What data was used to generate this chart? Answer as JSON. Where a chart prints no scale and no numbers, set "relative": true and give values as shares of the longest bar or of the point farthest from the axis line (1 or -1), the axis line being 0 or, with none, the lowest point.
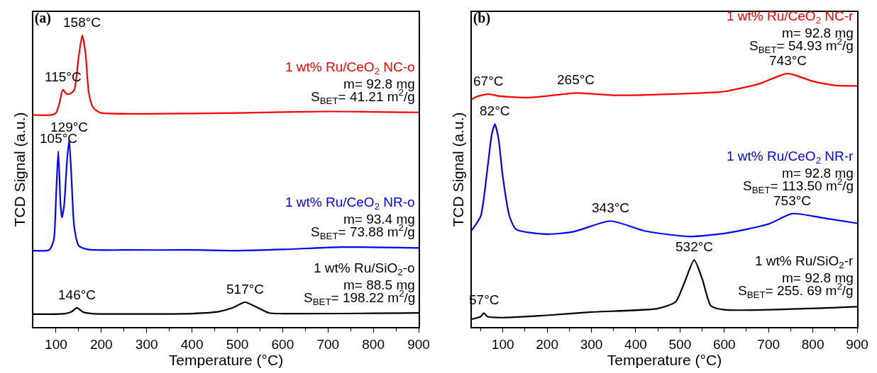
{
  "chart_data": [
    {
      "type": "line",
      "title": "(a)",
      "xlabel": "Temperature (°C)",
      "ylabel": "TCD Signal (a.u.)",
      "relative": true,
      "xlim": [
        50,
        900
      ],
      "xticks": [
        100,
        200,
        300,
        400,
        500,
        600,
        700,
        800,
        900,
        {
          "value": 150,
          "label": null
        },
        {
          "value": 250,
          "label": null
        },
        {
          "value": 350,
          "label": null
        },
        {
          "value": 450,
          "label": null
        },
        {
          "value": 550,
          "label": null
        },
        {
          "value": 650,
          "label": null
        },
        {
          "value": 750,
          "label": null
        },
        {
          "value": 850,
          "label": null
        }
      ],
      "series": [
        {
          "name": "1 wt% Ru/CeO$_{2}$ NC-o",
          "color": "#ff0000",
          "x": [
            50,
            90,
            100,
            108,
            115,
            122,
            130,
            140,
            150,
            158,
            165,
            172,
            180,
            190,
            200,
            300,
            500,
            700,
            900
          ],
          "values": [
            0.727,
            0.727,
            0.734,
            0.77,
            0.814,
            0.801,
            0.799,
            0.812,
            0.927,
            1,
            0.94,
            0.806,
            0.758,
            0.741,
            0.734,
            0.731,
            0.734,
            0.739,
            0.736
          ]
        },
        {
          "name": "1 wt% Ru/CeO$_{2}$ NR-o",
          "color": "#0000ff",
          "x": [
            50,
            85,
            95,
            100,
            105,
            110,
            113,
            118,
            124,
            129,
            134,
            140,
            150,
            170,
            250,
            400,
            500,
            600,
            730,
            900
          ],
          "values": [
            0.262,
            0.264,
            0.298,
            0.443,
            0.603,
            0.419,
            0.375,
            0.419,
            0.564,
            0.641,
            0.516,
            0.346,
            0.279,
            0.266,
            0.264,
            0.264,
            0.262,
            0.266,
            0.274,
            0.271
          ]
        },
        {
          "name": "1 wt% Ru/SiO$_{2}$-o",
          "color": "#000000",
          "x": [
            50,
            120,
            135,
            146,
            160,
            180,
            400,
            460,
            490,
            517,
            545,
            570,
            600,
            900
          ],
          "values": [
            0.044,
            0.046,
            0.053,
            0.066,
            0.051,
            0.046,
            0.046,
            0.053,
            0.066,
            0.085,
            0.066,
            0.048,
            0.046,
            0.048
          ]
        }
      ],
      "annotations": [
        "m= 92.8 mg",
        "S$_{BET}$= 41.21 m$^{2}$/g",
        "m= 93.4 mg",
        "S$_{BET}$= 73.88 m$^{2}$/g",
        "m= 88.5 mg",
        "S$_{BET}$= 198.22 m$^{2}$/g",
        {
          "text": "158°C",
          "x": 158,
          "y": 1
        },
        {
          "text": "115°C",
          "x": 115,
          "y": 0.814
        },
        {
          "text": "129°C",
          "x": 129,
          "y": 0.641
        },
        {
          "text": "105°C",
          "x": 105,
          "y": 0.603
        },
        {
          "text": "146°C",
          "x": 146,
          "y": 0.066
        },
        {
          "text": "517°C",
          "x": 517,
          "y": 0.085
        }
      ]
    },
    {
      "type": "line",
      "title": "(b)",
      "xlabel": "Temperature (°C)",
      "ylabel": "TCD Signal (a.u.)",
      "relative": true,
      "xlim": [
        30,
        900
      ],
      "xticks": [
        100,
        200,
        300,
        400,
        500,
        600,
        700,
        800,
        900,
        {
          "value": 50,
          "label": null
        },
        {
          "value": 150,
          "label": null
        },
        {
          "value": 250,
          "label": null
        },
        {
          "value": 350,
          "label": null
        },
        {
          "value": 450,
          "label": null
        },
        {
          "value": 550,
          "label": null
        },
        {
          "value": 650,
          "label": null
        },
        {
          "value": 750,
          "label": null
        },
        {
          "value": 850,
          "label": null
        }
      ],
      "series": [
        {
          "name": "1 wt% Ru/CeO$_{2}$ NC-r",
          "color": "#ff0000",
          "x": [
            30,
            40,
            67,
            90,
            150,
            200,
            265,
            350,
            450,
            600,
            680,
            743,
            800,
            850,
            900
          ],
          "values": [
            0.898,
            0.908,
            0.919,
            0.911,
            0.905,
            0.911,
            0.923,
            0.914,
            0.917,
            0.929,
            0.96,
            1,
            0.969,
            0.953,
            0.951
          ]
        },
        {
          "name": "1 wt% Ru/CeO$_{2}$ NR-r",
          "color": "#0000ff",
          "x": [
            30,
            50,
            65,
            75,
            82,
            90,
            100,
            115,
            130,
            200,
            260,
            343,
            420,
            520,
            600,
            700,
            753,
            820,
            900
          ],
          "values": [
            0.382,
            0.437,
            0.622,
            0.76,
            0.8,
            0.745,
            0.591,
            0.437,
            0.385,
            0.366,
            0.376,
            0.418,
            0.379,
            0.357,
            0.369,
            0.406,
            0.447,
            0.431,
            0.409
          ]
        },
        {
          "name": "1 wt% Ru/SiO$_{2}$-r",
          "color": "#000000",
          "x": [
            30,
            50,
            57,
            65,
            100,
            200,
            300,
            450,
            490,
            510,
            532,
            550,
            570,
            600,
            900
          ],
          "values": [
            0.031,
            0.041,
            0.055,
            0.041,
            0.037,
            0.046,
            0.059,
            0.073,
            0.099,
            0.175,
            0.264,
            0.191,
            0.083,
            0.068,
            0.08
          ]
        }
      ],
      "annotations": [
        "m= 92.8 mg",
        "S$_{BET}$= 54.93 m$^{2}$/g",
        "m= 92.8 mg",
        "S$_{BET}$= 113.50 m$^{2}$/g",
        "m= 92.8 mg",
        "S$_{BET}$= 255. 69 m$^{2}$/g",
        {
          "text": "67°C",
          "x": 67,
          "y": 0.919
        },
        {
          "text": "265°C",
          "x": 265,
          "y": 0.923
        },
        {
          "text": "743°C",
          "x": 743,
          "y": 1
        },
        {
          "text": "82°C",
          "x": 82,
          "y": 0.8
        },
        {
          "text": "343°C",
          "x": 343,
          "y": 0.418
        },
        {
          "text": "753°C",
          "x": 753,
          "y": 0.447
        },
        {
          "text": "57°C",
          "x": 57,
          "y": 0.055
        },
        {
          "text": "532°C",
          "x": 532,
          "y": 0.264
        }
      ]
    }
  ]
}
